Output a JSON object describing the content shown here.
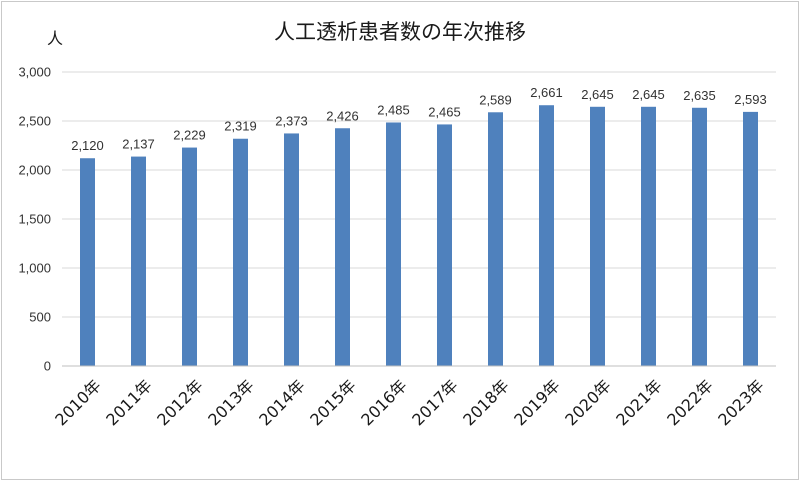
{
  "chart_data": {
    "type": "bar",
    "title": "人工透析患者数の年次推移",
    "unit_label": "人",
    "categories": [
      "2010年",
      "2011年",
      "2012年",
      "2013年",
      "2014年",
      "2015年",
      "2016年",
      "2017年",
      "2018年",
      "2019年",
      "2020年",
      "2021年",
      "2022年",
      "2023年"
    ],
    "values": [
      2120,
      2137,
      2229,
      2319,
      2373,
      2426,
      2485,
      2465,
      2589,
      2661,
      2645,
      2645,
      2635,
      2593
    ],
    "value_labels": [
      "2,120",
      "2,137",
      "2,229",
      "2,319",
      "2,373",
      "2,426",
      "2,485",
      "2,465",
      "2,589",
      "2,661",
      "2,645",
      "2,645",
      "2,635",
      "2,593"
    ],
    "ylim": [
      0,
      3000
    ],
    "yticks": [
      0,
      500,
      1000,
      1500,
      2000,
      2500,
      3000
    ],
    "ytick_labels": [
      "0",
      "500",
      "1,000",
      "1,500",
      "2,000",
      "2,500",
      "3,000"
    ],
    "grid": true,
    "legend": "none",
    "bar_color": "#4f81bd"
  }
}
